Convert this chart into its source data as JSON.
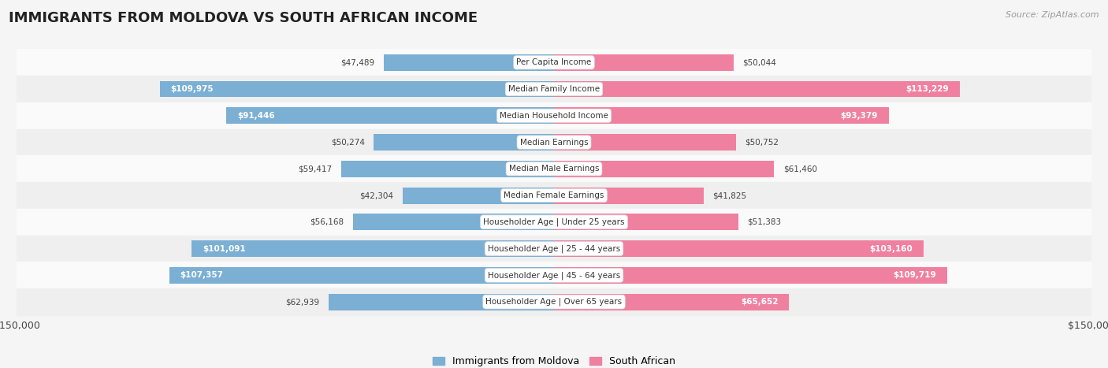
{
  "title": "IMMIGRANTS FROM MOLDOVA VS SOUTH AFRICAN INCOME",
  "source": "Source: ZipAtlas.com",
  "categories": [
    "Per Capita Income",
    "Median Family Income",
    "Median Household Income",
    "Median Earnings",
    "Median Male Earnings",
    "Median Female Earnings",
    "Householder Age | Under 25 years",
    "Householder Age | 25 - 44 years",
    "Householder Age | 45 - 64 years",
    "Householder Age | Over 65 years"
  ],
  "moldova_values": [
    47489,
    109975,
    91446,
    50274,
    59417,
    42304,
    56168,
    101091,
    107357,
    62939
  ],
  "southafrican_values": [
    50044,
    113229,
    93379,
    50752,
    61460,
    41825,
    51383,
    103160,
    109719,
    65652
  ],
  "moldova_labels": [
    "$47,489",
    "$109,975",
    "$91,446",
    "$50,274",
    "$59,417",
    "$42,304",
    "$56,168",
    "$101,091",
    "$107,357",
    "$62,939"
  ],
  "southafrican_labels": [
    "$50,044",
    "$113,229",
    "$93,379",
    "$50,752",
    "$61,460",
    "$41,825",
    "$51,383",
    "$103,160",
    "$109,719",
    "$65,652"
  ],
  "max_value": 150000,
  "moldova_color": "#7bafd4",
  "southafrican_color": "#f080a0",
  "bar_height": 0.62,
  "background_color": "#f5f5f5",
  "row_bg_light": "#fafafa",
  "row_bg_dark": "#efefef",
  "legend_moldova": "Immigrants from Moldova",
  "legend_southafrican": "South African",
  "label_inside_threshold": 65000
}
